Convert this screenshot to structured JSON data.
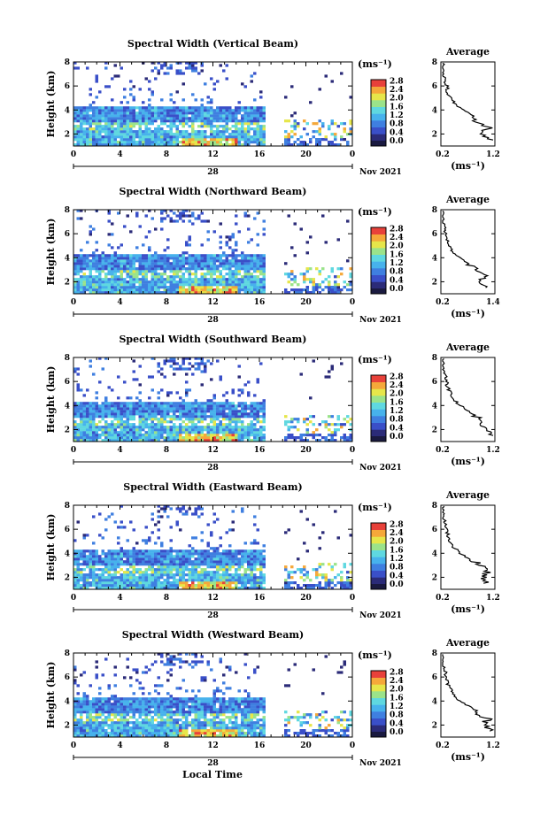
{
  "figure": {
    "panels": [
      {
        "title": "Spectral Width (Vertical Beam)",
        "avg_xticks": [
          "0.2",
          "1.2"
        ],
        "avg_xmax": 1.2
      },
      {
        "title": "Spectral Width (Northward Beam)",
        "avg_xticks": [
          "0.2",
          "1.4"
        ],
        "avg_xmax": 1.4
      },
      {
        "title": "Spectral Width (Southward Beam)",
        "avg_xticks": [
          "0.2",
          "1.2"
        ],
        "avg_xmax": 1.2
      },
      {
        "title": "Spectral Width (Eastward Beam)",
        "avg_xticks": [
          "0.2",
          "1.2"
        ],
        "avg_xmax": 1.2
      },
      {
        "title": "Spectral Width (Westward Beam)",
        "avg_xticks": [
          "0.2",
          "1.2"
        ],
        "avg_xmax": 1.2
      }
    ],
    "ylabel": "Height (km)",
    "yticks": [
      "2",
      "4",
      "6",
      "8"
    ],
    "xticks": [
      "0",
      "4",
      "8",
      "12",
      "16",
      "20",
      "0"
    ],
    "day_label": "28",
    "date_label": "Nov 2021",
    "colorbar_unit": "(ms⁻¹)",
    "colorbar_ticks": [
      "0.0",
      "0.4",
      "0.8",
      "1.2",
      "1.6",
      "2.0",
      "2.4",
      "2.8"
    ],
    "avg_title": "Average",
    "avg_yticks": [
      "2",
      "4",
      "6",
      "8"
    ],
    "avg_xlabel": "(ms⁻¹)",
    "xlabel": "Local Time",
    "colors": {
      "scale": [
        "#2b2b78",
        "#3a4fc8",
        "#3f7fe0",
        "#47b2ec",
        "#5fd8e0",
        "#9be38a",
        "#e6e64a",
        "#f5a83a",
        "#e8413a"
      ],
      "below_min": "#1a1a40"
    }
  },
  "chart_data": {
    "type": "heatmap",
    "x_label": "Local Time",
    "x_unit": "hour",
    "x_range": [
      0,
      24
    ],
    "y_label": "Height (km)",
    "y_range": [
      1,
      8
    ],
    "value_label": "Spectral Width",
    "value_unit": "ms-1",
    "value_range": [
      0.0,
      2.8
    ],
    "avg_profiles": [
      {
        "beam": "Vertical",
        "height": [
          1.5,
          2.0,
          2.5,
          3.0,
          3.5,
          4.0,
          4.5,
          5.0,
          5.5,
          6.0,
          6.5,
          7.0,
          7.5,
          8.0
        ],
        "width": [
          1.2,
          1.0,
          1.1,
          0.9,
          0.8,
          0.6,
          0.45,
          0.35,
          0.3,
          0.28,
          0.25,
          0.2,
          0.2,
          0.2
        ]
      },
      {
        "beam": "Northward",
        "height": [
          1.5,
          2.0,
          2.5,
          3.0,
          3.5,
          4.0,
          4.5,
          5.0,
          5.5,
          6.0,
          6.5,
          7.0,
          7.5,
          8.0
        ],
        "width": [
          1.3,
          1.1,
          1.2,
          1.0,
          0.8,
          0.6,
          0.45,
          0.35,
          0.3,
          0.28,
          0.25,
          0.2,
          0.2,
          0.2
        ]
      },
      {
        "beam": "Southward",
        "height": [
          1.5,
          2.0,
          2.5,
          3.0,
          3.5,
          4.0,
          4.5,
          5.0,
          5.5,
          6.0,
          6.5,
          7.0,
          7.5,
          8.0
        ],
        "width": [
          1.2,
          1.1,
          1.0,
          0.9,
          0.7,
          0.55,
          0.42,
          0.35,
          0.3,
          0.28,
          0.25,
          0.2,
          0.2,
          0.2
        ]
      },
      {
        "beam": "Eastward",
        "height": [
          1.5,
          2.0,
          2.5,
          3.0,
          3.5,
          4.0,
          4.5,
          5.0,
          5.5,
          6.0,
          6.5,
          7.0,
          7.5,
          8.0
        ],
        "width": [
          1.1,
          1.0,
          1.1,
          0.95,
          0.75,
          0.55,
          0.42,
          0.35,
          0.3,
          0.28,
          0.25,
          0.2,
          0.2,
          0.2
        ]
      },
      {
        "beam": "Westward",
        "height": [
          1.5,
          2.0,
          2.5,
          3.0,
          3.5,
          4.0,
          4.5,
          5.0,
          5.5,
          6.0,
          6.5,
          7.0,
          7.5,
          8.0
        ],
        "width": [
          1.2,
          1.0,
          1.1,
          0.9,
          0.75,
          0.55,
          0.42,
          0.35,
          0.3,
          0.28,
          0.25,
          0.2,
          0.2,
          0.2
        ]
      }
    ]
  }
}
